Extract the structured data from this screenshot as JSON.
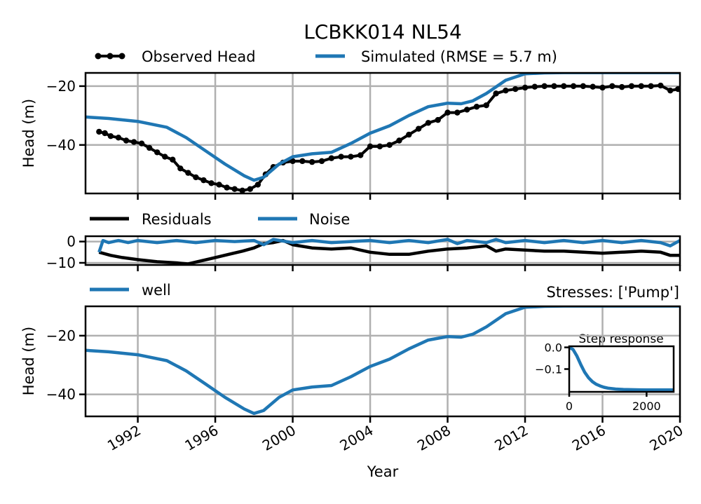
{
  "title": "LCBKK014 NL54",
  "colors": {
    "observed": "#000000",
    "simulated": "#1f77b4",
    "residuals": "#000000",
    "noise": "#1f77b4",
    "well": "#1f77b4",
    "grid": "#b0b0b0"
  },
  "chart_data": [
    {
      "id": "heads",
      "type": "line",
      "title": "LCBKK014 NL54",
      "ylabel": "Head (m)",
      "xlim": [
        1989.3,
        2020.0
      ],
      "ylim": [
        -56.5,
        -15.5
      ],
      "xticks": [
        1992,
        1996,
        2000,
        2004,
        2008,
        2012,
        2016,
        2020
      ],
      "yticks": [
        -20,
        -40
      ],
      "ytick_labels": [
        "−20",
        "−40"
      ],
      "legend_position": "top",
      "grid": true,
      "series": [
        {
          "name": "Observed Head",
          "style": "line-markers",
          "x": [
            1990.0,
            1990.3,
            1990.6,
            1991.0,
            1991.4,
            1991.8,
            1992.2,
            1992.6,
            1993.0,
            1993.4,
            1993.8,
            1994.2,
            1994.6,
            1995.0,
            1995.4,
            1995.8,
            1996.2,
            1996.6,
            1997.0,
            1997.4,
            1997.8,
            1998.2,
            1998.6,
            1999.0,
            1999.5,
            2000.0,
            2000.5,
            2001.0,
            2001.5,
            2002.0,
            2002.5,
            2003.0,
            2003.5,
            2004.0,
            2004.5,
            2005.0,
            2005.5,
            2006.0,
            2006.5,
            2007.0,
            2007.5,
            2008.0,
            2008.5,
            2009.0,
            2009.5,
            2010.0,
            2010.5,
            2011.0,
            2011.5,
            2012.0,
            2012.5,
            2013.0,
            2013.5,
            2014.0,
            2014.5,
            2015.0,
            2015.5,
            2016.0,
            2016.5,
            2017.0,
            2017.5,
            2018.0,
            2018.5,
            2019.0,
            2019.5,
            2019.9
          ],
          "values": [
            -35.5,
            -36.0,
            -37.0,
            -37.5,
            -38.5,
            -39.0,
            -39.5,
            -41.0,
            -42.5,
            -44.0,
            -45.0,
            -48.0,
            -49.5,
            -51.0,
            -52.0,
            -53.0,
            -53.5,
            -54.5,
            -55.0,
            -55.5,
            -55.0,
            -53.5,
            -50.0,
            -47.5,
            -46.0,
            -45.5,
            -45.5,
            -45.8,
            -45.5,
            -44.5,
            -44.0,
            -44.0,
            -43.5,
            -40.5,
            -40.5,
            -40.0,
            -38.5,
            -36.5,
            -34.5,
            -32.5,
            -31.5,
            -29.0,
            -29.0,
            -28.0,
            -27.0,
            -26.5,
            -22.5,
            -21.5,
            -21.0,
            -20.5,
            -20.2,
            -20.0,
            -20.0,
            -20.0,
            -20.0,
            -20.0,
            -20.2,
            -20.5,
            -20.0,
            -20.3,
            -20.0,
            -20.0,
            -20.0,
            -19.8,
            -21.5,
            -21.0
          ]
        },
        {
          "name": "Simulated (RMSE = 5.7 m)",
          "style": "line",
          "x": [
            1989.3,
            1990.5,
            1992.0,
            1993.5,
            1994.5,
            1995.5,
            1996.5,
            1997.5,
            1998.0,
            1998.5,
            1999.3,
            2000.0,
            2001.0,
            2002.0,
            2003.0,
            2004.0,
            2005.0,
            2006.0,
            2007.0,
            2008.0,
            2008.7,
            2009.3,
            2010.0,
            2011.0,
            2012.0,
            2013.0,
            2014.0,
            2015.0,
            2016.0,
            2018.0,
            2020.0
          ],
          "values": [
            -30.5,
            -31.0,
            -32.0,
            -34.0,
            -37.5,
            -42.0,
            -46.5,
            -50.5,
            -52.0,
            -51.0,
            -46.5,
            -44.0,
            -43.0,
            -42.5,
            -39.5,
            -36.0,
            -33.5,
            -30.0,
            -27.0,
            -25.8,
            -26.0,
            -25.0,
            -22.5,
            -18.0,
            -15.8,
            -15.5,
            -15.4,
            -15.4,
            -15.4,
            -15.4,
            -15.4
          ]
        }
      ]
    },
    {
      "id": "residuals",
      "type": "line",
      "xlim": [
        1989.3,
        2020.0
      ],
      "ylim": [
        -11.0,
        2.5
      ],
      "yticks": [
        0,
        -10
      ],
      "ytick_labels": [
        "0",
        "−10"
      ],
      "legend_position": "top",
      "grid": true,
      "series": [
        {
          "name": "Residuals",
          "x": [
            1990.0,
            1990.6,
            1991.2,
            1992.0,
            1993.0,
            1994.0,
            1994.6,
            1995.3,
            1996.0,
            1996.7,
            1997.4,
            1998.0,
            1998.5,
            1999.0,
            1999.5,
            2000.0,
            2001.0,
            2002.0,
            2003.0,
            2004.0,
            2005.0,
            2006.0,
            2007.0,
            2008.0,
            2009.0,
            2010.0,
            2010.5,
            2011.0,
            2012.0,
            2013.0,
            2014.0,
            2015.0,
            2016.0,
            2017.0,
            2018.0,
            2019.0,
            2019.5,
            2020.0
          ],
          "values": [
            -5.0,
            -6.5,
            -7.5,
            -8.5,
            -9.5,
            -10.0,
            -10.5,
            -9.0,
            -7.5,
            -6.0,
            -4.5,
            -3.0,
            -1.0,
            -0.5,
            0.5,
            -1.5,
            -3.0,
            -3.5,
            -3.0,
            -5.0,
            -6.0,
            -6.0,
            -4.5,
            -3.5,
            -3.0,
            -2.0,
            -4.5,
            -3.5,
            -4.0,
            -4.5,
            -4.5,
            -5.0,
            -5.5,
            -5.0,
            -4.5,
            -5.0,
            -6.5,
            -6.5
          ]
        },
        {
          "name": "Noise",
          "x": [
            1990.0,
            1990.2,
            1990.5,
            1991.0,
            1991.5,
            1992.0,
            1993.0,
            1994.0,
            1995.0,
            1996.0,
            1997.0,
            1998.0,
            1998.5,
            1999.0,
            2000.0,
            2001.0,
            2002.0,
            2003.0,
            2004.0,
            2005.0,
            2006.0,
            2007.0,
            2008.0,
            2008.5,
            2009.0,
            2010.0,
            2010.5,
            2011.0,
            2012.0,
            2013.0,
            2014.0,
            2015.0,
            2016.0,
            2017.0,
            2018.0,
            2019.0,
            2019.5,
            2020.0
          ],
          "values": [
            -5.0,
            0.5,
            -0.5,
            0.5,
            -0.5,
            0.5,
            -0.5,
            0.5,
            -0.5,
            0.5,
            0.0,
            0.5,
            -1.5,
            1.0,
            -0.5,
            0.5,
            -0.5,
            0.0,
            0.5,
            -0.5,
            0.5,
            -0.5,
            1.0,
            -1.0,
            0.5,
            -0.5,
            1.0,
            -0.5,
            0.5,
            -0.5,
            0.5,
            -0.5,
            0.5,
            -0.5,
            0.5,
            -0.5,
            -2.0,
            0.5
          ]
        }
      ]
    },
    {
      "id": "contributions",
      "type": "line",
      "xlabel": "Year",
      "ylabel": "Head (m)",
      "xlim": [
        1989.3,
        2020.0
      ],
      "ylim": [
        -47.5,
        -10.0
      ],
      "yticks": [
        -20,
        -40
      ],
      "ytick_labels": [
        "−20",
        "−40"
      ],
      "legend_position": "top-left",
      "annotation": "Stresses: ['Pump']",
      "grid": true,
      "series": [
        {
          "name": "well",
          "x": [
            1989.3,
            1990.5,
            1992.0,
            1993.5,
            1994.5,
            1995.5,
            1996.5,
            1997.5,
            1998.0,
            1998.5,
            1999.3,
            2000.0,
            2001.0,
            2002.0,
            2003.0,
            2004.0,
            2005.0,
            2006.0,
            2007.0,
            2008.0,
            2008.7,
            2009.3,
            2010.0,
            2011.0,
            2012.0,
            2013.0,
            2014.0,
            2015.0,
            2016.0,
            2018.0,
            2020.0
          ],
          "values": [
            -25.0,
            -25.5,
            -26.5,
            -28.5,
            -32.0,
            -36.5,
            -41.0,
            -45.0,
            -46.5,
            -45.5,
            -41.0,
            -38.5,
            -37.5,
            -37.0,
            -34.0,
            -30.5,
            -28.0,
            -24.5,
            -21.5,
            -20.3,
            -20.5,
            -19.5,
            -17.0,
            -12.5,
            -10.3,
            -10.0,
            -9.9,
            -9.9,
            -9.9,
            -9.9,
            -9.9
          ]
        }
      ]
    },
    {
      "id": "step_response",
      "type": "line",
      "title": "Step response",
      "xlim": [
        0,
        2700
      ],
      "ylim": [
        -0.205,
        0.005
      ],
      "xticks": [
        0,
        2000
      ],
      "yticks": [
        0.0,
        -0.1
      ],
      "ytick_labels": [
        "0.0",
        "−0.1"
      ],
      "grid": false,
      "series": [
        {
          "x": [
            0,
            100,
            200,
            300,
            400,
            500,
            600,
            700,
            800,
            900,
            1000,
            1200,
            1400,
            1600,
            1800,
            2000,
            2200,
            2400,
            2700
          ],
          "values": [
            0.0,
            -0.01,
            -0.04,
            -0.08,
            -0.115,
            -0.14,
            -0.158,
            -0.17,
            -0.178,
            -0.184,
            -0.188,
            -0.192,
            -0.194,
            -0.195,
            -0.1955,
            -0.196,
            -0.196,
            -0.196,
            -0.196
          ]
        }
      ]
    }
  ]
}
